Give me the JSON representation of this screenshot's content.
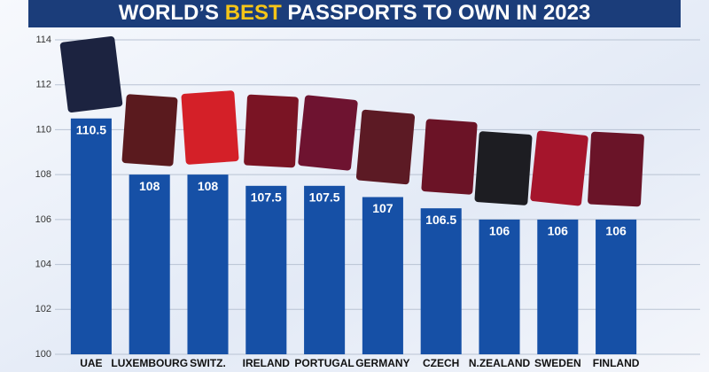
{
  "chart_data": {
    "type": "bar",
    "title": [
      {
        "text": "WORLD’S ",
        "color": "#ffffff"
      },
      {
        "text": "BEST",
        "color": "#f5c518"
      },
      {
        "text": " PASSPORTS TO OWN IN 2023",
        "color": "#ffffff"
      }
    ],
    "categories": [
      "UAE",
      "LUXEMBOURG",
      "SWITZ.",
      "IRELAND",
      "PORTUGAL",
      "GERMANY",
      "CZECH",
      "N.ZEALAND",
      "SWEDEN",
      "FINLAND"
    ],
    "values": [
      110.5,
      108,
      108,
      107.5,
      107.5,
      107,
      106.5,
      106,
      106,
      106
    ],
    "color": "#1650a6",
    "ylim": [
      100,
      114
    ],
    "yticks": [
      100,
      102,
      104,
      106,
      108,
      110,
      112,
      114
    ],
    "grid": true
  }
}
